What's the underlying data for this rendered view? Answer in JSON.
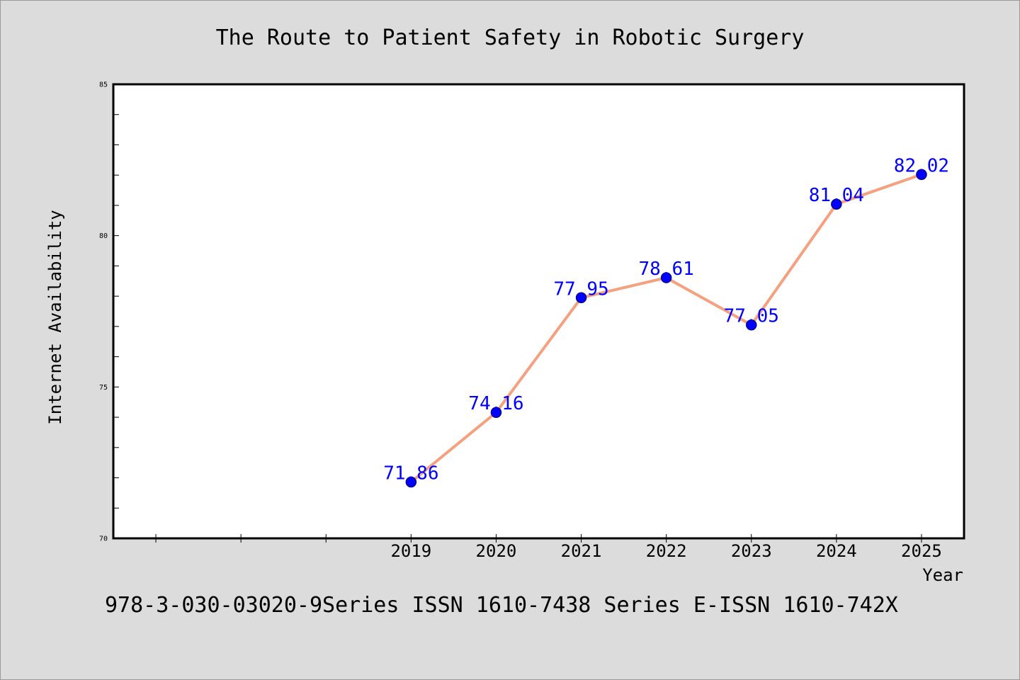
{
  "chart_data": {
    "type": "line",
    "title": "The Route to Patient Safety in Robotic Surgery",
    "xlabel": "Year",
    "ylabel": "Internet Availability",
    "x": [
      2019,
      2020,
      2021,
      2022,
      2023,
      2024,
      2025
    ],
    "series": [
      {
        "values": [
          71.86,
          74.16,
          77.95,
          78.61,
          77.05,
          81.04,
          82.02
        ]
      }
    ],
    "xlim": [
      2015.5,
      2025.5
    ],
    "ylim": [
      70,
      85
    ],
    "x_ticks": [
      "2019",
      "2020",
      "2021",
      "2022",
      "2023",
      "2024",
      "2025"
    ],
    "x_unlabeled_ticks": [
      2016,
      2017,
      2018
    ],
    "y_ticks": [
      "70",
      "75",
      "80",
      "85"
    ],
    "y_minor_step": 1,
    "data_labels": true,
    "grid": false,
    "legend": "none"
  },
  "footnote": "978-3-030-03020-9Series ISSN 1610-7438 Series E-ISSN 1610-742X",
  "colors": {
    "background": "#dcdcdc",
    "plot_background": "#ffffff",
    "line": "#f5a07f",
    "marker": "#0000ff",
    "marker_edge": "#00008b",
    "data_label": "#0000ff",
    "axis": "#000000"
  }
}
